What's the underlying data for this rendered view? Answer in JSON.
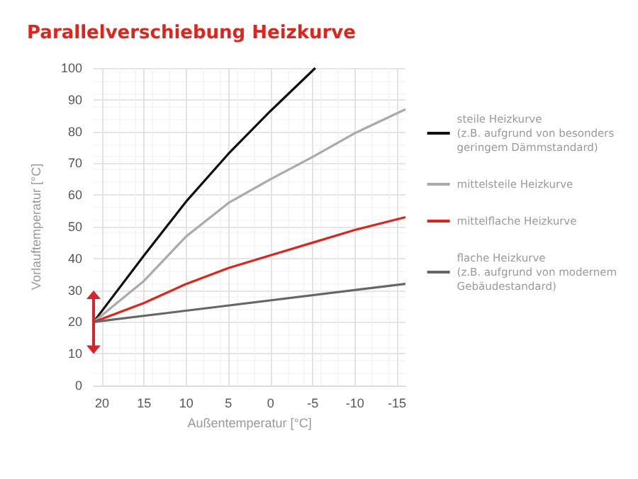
{
  "chart_data": {
    "type": "line",
    "title": "Parallelverschiebung Heizkurve",
    "xlabel": "Außentemperatur [°C]",
    "ylabel": "Vorlauftemperatur [°C]",
    "xlim": [
      21,
      -16
    ],
    "xticks": [
      20,
      15,
      10,
      5,
      0,
      -5,
      -10,
      -15
    ],
    "ylim": [
      0,
      100
    ],
    "yticks": [
      0,
      10,
      20,
      30,
      40,
      50,
      60,
      70,
      80,
      90,
      100
    ],
    "grid": true,
    "legend": "right",
    "marker": "none",
    "line_style": "solid",
    "series": [
      {
        "name": "steile Heizkurve\n(z.B. aufgrund von besonders\ngeringem Dämmstandard)",
        "color": "#111111",
        "x": [
          21,
          15,
          10,
          5,
          0,
          -5.3
        ],
        "values": [
          20,
          41,
          58,
          73,
          86.5,
          100
        ]
      },
      {
        "name": "mittelsteile Heizkurve",
        "color": "#aaaaaa",
        "x": [
          21,
          15,
          10,
          5,
          0,
          -5,
          -10,
          -16
        ],
        "values": [
          20,
          33,
          47,
          57.5,
          65,
          72,
          79.5,
          87
        ]
      },
      {
        "name": "mittelflache Heizkurve",
        "color": "#e2231a",
        "x": [
          21,
          15,
          10,
          5,
          0,
          -5,
          -10,
          -16
        ],
        "values": [
          20,
          26,
          32,
          37,
          41,
          45,
          49,
          53
        ]
      },
      {
        "name": "flache Heizkurve\n(z.B. aufgrund von modernem\nGebäudestandard)",
        "color": "#666666",
        "x": [
          21,
          -16
        ],
        "values": [
          20,
          32
        ]
      }
    ]
  }
}
